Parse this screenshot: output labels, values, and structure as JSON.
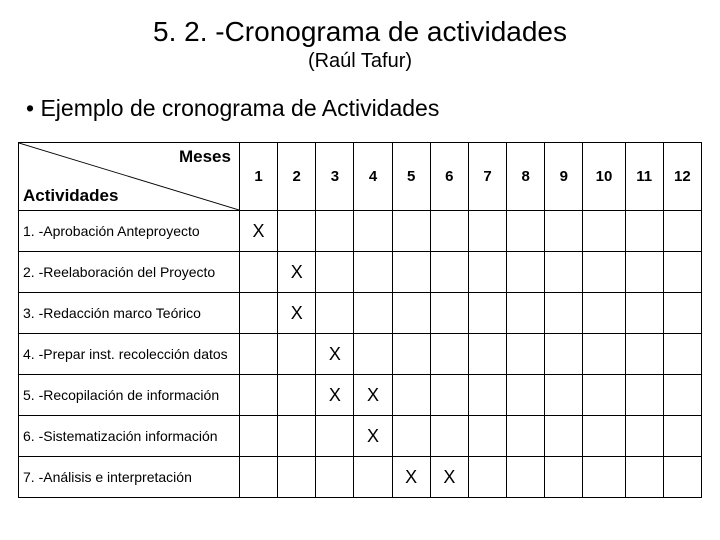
{
  "title": "5. 2. -Cronograma de actividades",
  "subtitle": "(Raúl Tafur)",
  "bullet": "Ejemplo de cronograma de Actividades",
  "header_top": "Meses",
  "header_bottom": "Actividades",
  "months": [
    "1",
    "2",
    "3",
    "4",
    "5",
    "6",
    "7",
    "8",
    "9",
    "10",
    "11",
    "12"
  ],
  "mark": "X",
  "rows": [
    {
      "label": "1. -Aprobación  Anteproyecto",
      "cells": [
        "X",
        "",
        "",
        "",
        "",
        "",
        "",
        "",
        "",
        "",
        "",
        ""
      ]
    },
    {
      "label": "2. -Reelaboración del Proyecto",
      "cells": [
        "",
        "X",
        "",
        "",
        "",
        "",
        "",
        "",
        "",
        "",
        "",
        ""
      ]
    },
    {
      "label": "3. -Redacción marco Teórico",
      "cells": [
        "",
        "X",
        "",
        "",
        "",
        "",
        "",
        "",
        "",
        "",
        "",
        ""
      ]
    },
    {
      "label": "4. -Prepar inst. recolección datos",
      "cells": [
        "",
        "",
        "X",
        "",
        "",
        "",
        "",
        "",
        "",
        "",
        "",
        ""
      ]
    },
    {
      "label": "5. -Recopilación de información",
      "cells": [
        "",
        "",
        "X",
        "X",
        "",
        "",
        "",
        "",
        "",
        "",
        "",
        ""
      ]
    },
    {
      "label": "6. -Sistematización información",
      "cells": [
        "",
        "",
        "",
        "X",
        "",
        "",
        "",
        "",
        "",
        "",
        "",
        ""
      ]
    },
    {
      "label": "7. -Análisis e interpretación",
      "cells": [
        "",
        "",
        "",
        "",
        "X",
        "X",
        "",
        "",
        "",
        "",
        "",
        ""
      ]
    }
  ],
  "colors": {
    "line": "#000000",
    "bg": "#ffffff",
    "text": "#000000"
  }
}
